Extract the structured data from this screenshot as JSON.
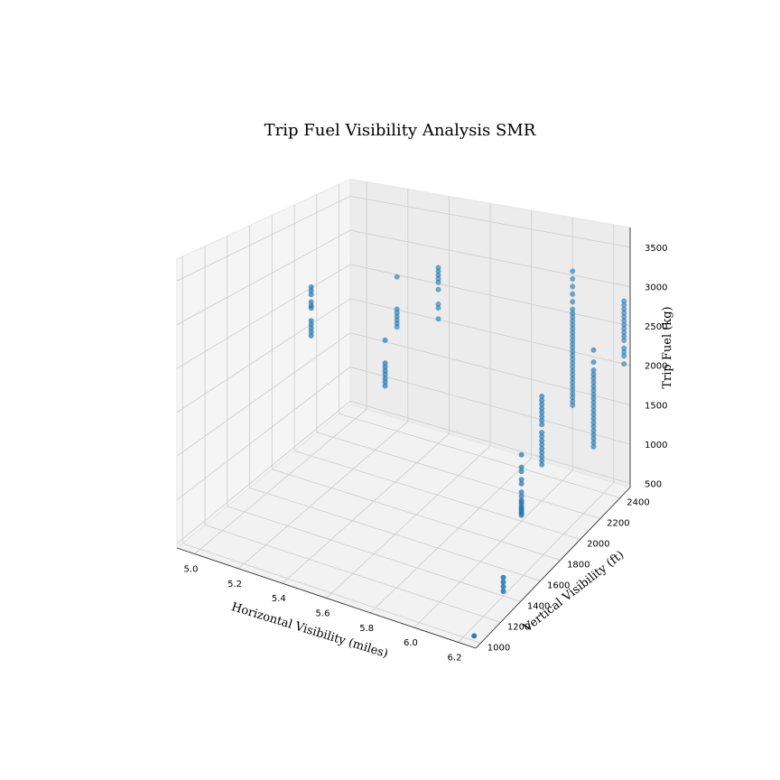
{
  "chart_data": {
    "type": "scatter",
    "projection": "3d",
    "title": "Trip Fuel Visibility Analysis SMR",
    "xlabel": "Horizontal Visibility (miles)",
    "ylabel": "Vertical Visibility (ft)",
    "zlabel": "Trip Fuel (kg)",
    "xlim": [
      4.92,
      6.28
    ],
    "ylim": [
      950,
      2500
    ],
    "zlim": [
      450,
      3750
    ],
    "x_ticks": [
      "5.0",
      "5.2",
      "5.4",
      "5.6",
      "5.8",
      "6.0",
      "6.2"
    ],
    "y_ticks": [
      "1000",
      "1200",
      "1400",
      "1600",
      "1800",
      "2000",
      "2200",
      "2400"
    ],
    "z_ticks": [
      "500",
      "1000",
      "1500",
      "2000",
      "2500",
      "3000",
      "3500"
    ],
    "grid": true,
    "marker_color": "#1f77b4",
    "points": [
      {
        "x": 5.0,
        "y": 2000,
        "z": 2700
      },
      {
        "x": 5.0,
        "y": 2000,
        "z": 2650
      },
      {
        "x": 5.0,
        "y": 2000,
        "z": 2600
      },
      {
        "x": 5.0,
        "y": 2000,
        "z": 2500
      },
      {
        "x": 5.0,
        "y": 2000,
        "z": 2450
      },
      {
        "x": 5.0,
        "y": 2000,
        "z": 2420
      },
      {
        "x": 5.0,
        "y": 2000,
        "z": 2250
      },
      {
        "x": 5.0,
        "y": 2000,
        "z": 2200
      },
      {
        "x": 5.0,
        "y": 2000,
        "z": 2150
      },
      {
        "x": 5.0,
        "y": 2000,
        "z": 2100
      },
      {
        "x": 5.0,
        "y": 2000,
        "z": 2050
      },
      {
        "x": 5.2,
        "y": 2400,
        "z": 2600
      },
      {
        "x": 5.2,
        "y": 2400,
        "z": 2150
      },
      {
        "x": 5.2,
        "y": 2400,
        "z": 2100
      },
      {
        "x": 5.2,
        "y": 2400,
        "z": 2050
      },
      {
        "x": 5.2,
        "y": 2400,
        "z": 2000
      },
      {
        "x": 5.2,
        "y": 2400,
        "z": 1950
      },
      {
        "x": 5.2,
        "y": 2400,
        "z": 1900
      },
      {
        "x": 5.4,
        "y": 2400,
        "z": 2850
      },
      {
        "x": 5.4,
        "y": 2400,
        "z": 2800
      },
      {
        "x": 5.4,
        "y": 2400,
        "z": 2750
      },
      {
        "x": 5.4,
        "y": 2400,
        "z": 2700
      },
      {
        "x": 5.4,
        "y": 2400,
        "z": 2650
      },
      {
        "x": 5.4,
        "y": 2400,
        "z": 2550
      },
      {
        "x": 5.4,
        "y": 2400,
        "z": 2350
      },
      {
        "x": 5.4,
        "y": 2400,
        "z": 2300
      },
      {
        "x": 5.4,
        "y": 2400,
        "z": 2150
      },
      {
        "x": 5.3,
        "y": 2100,
        "z": 2100
      },
      {
        "x": 5.3,
        "y": 2100,
        "z": 1800
      },
      {
        "x": 5.3,
        "y": 2100,
        "z": 1750
      },
      {
        "x": 5.3,
        "y": 2100,
        "z": 1700
      },
      {
        "x": 5.3,
        "y": 2100,
        "z": 1650
      },
      {
        "x": 5.3,
        "y": 2100,
        "z": 1600
      },
      {
        "x": 5.3,
        "y": 2100,
        "z": 1550
      },
      {
        "x": 5.3,
        "y": 2100,
        "z": 1500
      },
      {
        "x": 6.0,
        "y": 2000,
        "z": 1250
      },
      {
        "x": 6.0,
        "y": 2000,
        "z": 1100
      },
      {
        "x": 6.0,
        "y": 2000,
        "z": 1050
      },
      {
        "x": 6.0,
        "y": 2000,
        "z": 950
      },
      {
        "x": 6.0,
        "y": 2000,
        "z": 900
      },
      {
        "x": 6.0,
        "y": 2000,
        "z": 800
      },
      {
        "x": 6.0,
        "y": 2000,
        "z": 750
      },
      {
        "x": 6.0,
        "y": 2000,
        "z": 700
      },
      {
        "x": 6.0,
        "y": 2000,
        "z": 680
      },
      {
        "x": 6.0,
        "y": 2000,
        "z": 650
      },
      {
        "x": 6.0,
        "y": 2000,
        "z": 620
      },
      {
        "x": 6.0,
        "y": 2000,
        "z": 600
      },
      {
        "x": 6.0,
        "y": 2000,
        "z": 580
      },
      {
        "x": 6.0,
        "y": 2000,
        "z": 560
      },
      {
        "x": 6.0,
        "y": 2000,
        "z": 540
      },
      {
        "x": 6.0,
        "y": 2000,
        "z": 520
      },
      {
        "x": 6.0,
        "y": 2200,
        "z": 1750
      },
      {
        "x": 6.0,
        "y": 2200,
        "z": 1700
      },
      {
        "x": 6.0,
        "y": 2200,
        "z": 1650
      },
      {
        "x": 6.0,
        "y": 2200,
        "z": 1600
      },
      {
        "x": 6.0,
        "y": 2200,
        "z": 1550
      },
      {
        "x": 6.0,
        "y": 2200,
        "z": 1500
      },
      {
        "x": 6.0,
        "y": 2200,
        "z": 1450
      },
      {
        "x": 6.0,
        "y": 2200,
        "z": 1400
      },
      {
        "x": 6.0,
        "y": 2200,
        "z": 1300
      },
      {
        "x": 6.0,
        "y": 2200,
        "z": 1250
      },
      {
        "x": 6.0,
        "y": 2200,
        "z": 1200
      },
      {
        "x": 6.0,
        "y": 2200,
        "z": 1150
      },
      {
        "x": 6.0,
        "y": 2200,
        "z": 1100
      },
      {
        "x": 6.0,
        "y": 2200,
        "z": 1050
      },
      {
        "x": 6.0,
        "y": 2200,
        "z": 1000
      },
      {
        "x": 6.0,
        "y": 2200,
        "z": 950
      },
      {
        "x": 6.0,
        "y": 2200,
        "z": 900
      },
      {
        "x": 6.2,
        "y": 2300,
        "z": 2350
      },
      {
        "x": 6.2,
        "y": 2300,
        "z": 2200
      },
      {
        "x": 6.2,
        "y": 2300,
        "z": 2100
      },
      {
        "x": 6.2,
        "y": 2300,
        "z": 2050
      },
      {
        "x": 6.2,
        "y": 2300,
        "z": 2000
      },
      {
        "x": 6.2,
        "y": 2300,
        "z": 1950
      },
      {
        "x": 6.2,
        "y": 2300,
        "z": 1900
      },
      {
        "x": 6.2,
        "y": 2300,
        "z": 1850
      },
      {
        "x": 6.2,
        "y": 2300,
        "z": 1800
      },
      {
        "x": 6.2,
        "y": 2300,
        "z": 1750
      },
      {
        "x": 6.2,
        "y": 2300,
        "z": 1700
      },
      {
        "x": 6.2,
        "y": 2300,
        "z": 1650
      },
      {
        "x": 6.2,
        "y": 2300,
        "z": 1600
      },
      {
        "x": 6.2,
        "y": 2300,
        "z": 1550
      },
      {
        "x": 6.2,
        "y": 2300,
        "z": 1500
      },
      {
        "x": 6.2,
        "y": 2300,
        "z": 1450
      },
      {
        "x": 6.2,
        "y": 2300,
        "z": 1400
      },
      {
        "x": 6.2,
        "y": 2300,
        "z": 1350
      },
      {
        "x": 6.2,
        "y": 2300,
        "z": 1300
      },
      {
        "x": 6.2,
        "y": 2300,
        "z": 1250
      },
      {
        "x": 6.2,
        "y": 2300,
        "z": 1200
      },
      {
        "x": 6.2,
        "y": 2300,
        "z": 1150
      },
      {
        "x": 6.0,
        "y": 2500,
        "z": 3050
      },
      {
        "x": 6.0,
        "y": 2500,
        "z": 2950
      },
      {
        "x": 6.0,
        "y": 2500,
        "z": 2850
      },
      {
        "x": 6.0,
        "y": 2500,
        "z": 2750
      },
      {
        "x": 6.0,
        "y": 2500,
        "z": 2650
      },
      {
        "x": 6.0,
        "y": 2500,
        "z": 2550
      },
      {
        "x": 6.0,
        "y": 2500,
        "z": 2500
      },
      {
        "x": 6.0,
        "y": 2500,
        "z": 2450
      },
      {
        "x": 6.0,
        "y": 2500,
        "z": 2400
      },
      {
        "x": 6.0,
        "y": 2500,
        "z": 2350
      },
      {
        "x": 6.0,
        "y": 2500,
        "z": 2300
      },
      {
        "x": 6.0,
        "y": 2500,
        "z": 2250
      },
      {
        "x": 6.0,
        "y": 2500,
        "z": 2200
      },
      {
        "x": 6.0,
        "y": 2500,
        "z": 2150
      },
      {
        "x": 6.0,
        "y": 2500,
        "z": 2100
      },
      {
        "x": 6.0,
        "y": 2500,
        "z": 2050
      },
      {
        "x": 6.0,
        "y": 2500,
        "z": 2000
      },
      {
        "x": 6.0,
        "y": 2500,
        "z": 1950
      },
      {
        "x": 6.0,
        "y": 2500,
        "z": 1900
      },
      {
        "x": 6.0,
        "y": 2500,
        "z": 1850
      },
      {
        "x": 6.0,
        "y": 2500,
        "z": 1800
      },
      {
        "x": 6.0,
        "y": 2500,
        "z": 1750
      },
      {
        "x": 6.0,
        "y": 2500,
        "z": 1700
      },
      {
        "x": 6.0,
        "y": 2500,
        "z": 1650
      },
      {
        "x": 6.0,
        "y": 2500,
        "z": 1600
      },
      {
        "x": 6.0,
        "y": 2500,
        "z": 1550
      },
      {
        "x": 6.0,
        "y": 2500,
        "z": 1500
      },
      {
        "x": 6.0,
        "y": 2500,
        "z": 1450
      },
      {
        "x": 6.0,
        "y": 2500,
        "z": 1400
      },
      {
        "x": 6.0,
        "y": 2500,
        "z": 1350
      },
      {
        "x": 6.0,
        "y": 2500,
        "z": 1300
      },
      {
        "x": 6.25,
        "y": 2500,
        "z": 2800
      },
      {
        "x": 6.25,
        "y": 2500,
        "z": 2750
      },
      {
        "x": 6.25,
        "y": 2500,
        "z": 2700
      },
      {
        "x": 6.25,
        "y": 2500,
        "z": 2650
      },
      {
        "x": 6.25,
        "y": 2500,
        "z": 2600
      },
      {
        "x": 6.25,
        "y": 2500,
        "z": 2550
      },
      {
        "x": 6.25,
        "y": 2500,
        "z": 2500
      },
      {
        "x": 6.25,
        "y": 2500,
        "z": 2450
      },
      {
        "x": 6.25,
        "y": 2500,
        "z": 2400
      },
      {
        "x": 6.25,
        "y": 2500,
        "z": 2350
      },
      {
        "x": 6.25,
        "y": 2500,
        "z": 2300
      },
      {
        "x": 6.25,
        "y": 2500,
        "z": 2200
      },
      {
        "x": 6.25,
        "y": 2500,
        "z": 2150
      },
      {
        "x": 6.25,
        "y": 2500,
        "z": 2100
      },
      {
        "x": 6.25,
        "y": 2500,
        "z": 2000
      },
      {
        "x": 6.2,
        "y": 1400,
        "z": 650
      },
      {
        "x": 6.2,
        "y": 1400,
        "z": 600
      },
      {
        "x": 6.2,
        "y": 1400,
        "z": 550
      },
      {
        "x": 6.2,
        "y": 1400,
        "z": 500
      },
      {
        "x": 6.25,
        "y": 1000,
        "z": 500
      }
    ]
  }
}
